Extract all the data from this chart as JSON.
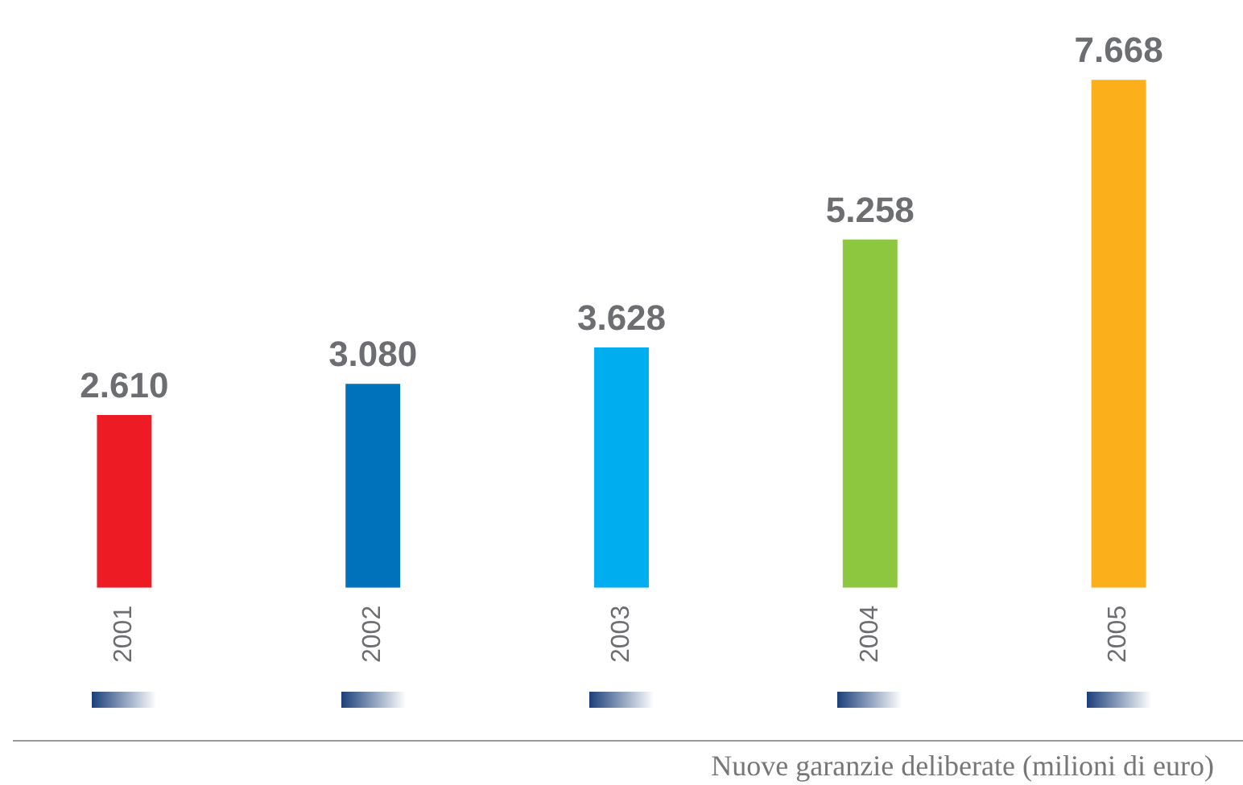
{
  "chart_data": {
    "type": "bar",
    "categories": [
      "2001",
      "2002",
      "2003",
      "2004",
      "2005"
    ],
    "values": [
      2610,
      3080,
      3628,
      5258,
      7668
    ],
    "value_labels": [
      "2.610",
      "3.080",
      "3.628",
      "5.258",
      "7.668"
    ],
    "colors": [
      "#ed1c24",
      "#0072bc",
      "#00aeef",
      "#8dc63f",
      "#fbb01b"
    ],
    "annotations": [
      "Nuove garanzie deliberate (milioni di euro)"
    ],
    "legend": false
  }
}
